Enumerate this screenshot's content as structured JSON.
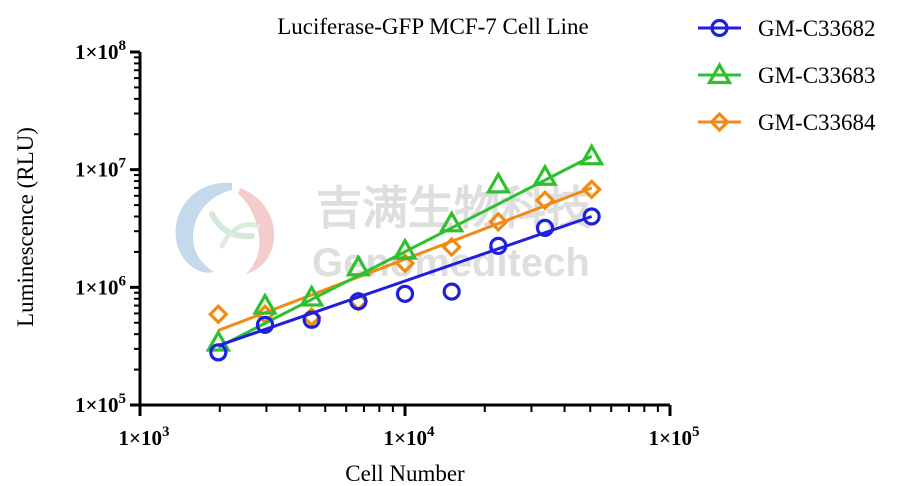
{
  "chart_data": {
    "type": "scatter",
    "title": "Luciferase-GFP MCF-7 Cell Line",
    "xlabel": "Cell Number",
    "ylabel": "Luminescence (RLU)",
    "x_scale": "log",
    "y_scale": "log",
    "xlim": [
      1000,
      100000
    ],
    "ylim": [
      100000,
      100000000
    ],
    "x_ticks": [
      {
        "base": "1×10",
        "exp": "3"
      },
      {
        "base": "1×10",
        "exp": "4"
      },
      {
        "base": "1×10",
        "exp": "5"
      }
    ],
    "y_ticks": [
      {
        "base": "1×10",
        "exp": "5"
      },
      {
        "base": "1×10",
        "exp": "6"
      },
      {
        "base": "1×10",
        "exp": "7"
      },
      {
        "base": "1×10",
        "exp": "8"
      }
    ],
    "legend_position": "top-right",
    "series": [
      {
        "name": "GM-C33682",
        "color": "#1f1fe0",
        "marker": "circle",
        "x": [
          1975,
          2963,
          4444,
          6667,
          10000,
          15000,
          22500,
          33750,
          50625
        ],
        "y": [
          280000,
          480000,
          530000,
          760000,
          880000,
          920000,
          2250000,
          3200000,
          4000000
        ],
        "fit": {
          "x": [
            1975,
            50625
          ],
          "y": [
            320000,
            4000000
          ]
        }
      },
      {
        "name": "GM-C33683",
        "color": "#2ec02e",
        "marker": "triangle",
        "x": [
          1975,
          2963,
          4444,
          6667,
          10000,
          15000,
          22500,
          33750,
          50625
        ],
        "y": [
          340000,
          700000,
          820000,
          1480000,
          2050000,
          3500000,
          7500000,
          8700000,
          13000000
        ],
        "fit": {
          "x": [
            1975,
            50625
          ],
          "y": [
            310000,
            13000000
          ]
        }
      },
      {
        "name": "GM-C33684",
        "color": "#f08c14",
        "marker": "diamond",
        "x": [
          1975,
          2963,
          4444,
          6667,
          10000,
          15000,
          22500,
          33750,
          50625
        ],
        "y": [
          590000,
          590000,
          560000,
          760000,
          1600000,
          2200000,
          3600000,
          5500000,
          6800000
        ],
        "fit": {
          "x": [
            1975,
            50625
          ],
          "y": [
            430000,
            7000000
          ]
        }
      }
    ]
  },
  "watermark": {
    "cn": "吉满生物科技",
    "en": "Genomeditech",
    "logo": "genomeditech-logo-swirl"
  }
}
